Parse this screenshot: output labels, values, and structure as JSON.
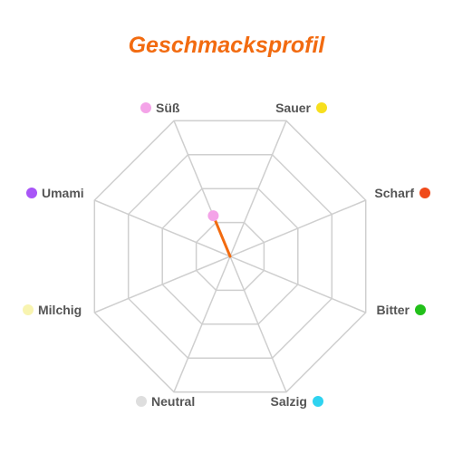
{
  "colors": {
    "title": "#f26b10",
    "grid": "#cfcfcf",
    "value_line": "#f26b10",
    "label_text": "#555555"
  },
  "chart_data": {
    "type": "radar",
    "title": "Geschmacksprofil",
    "axes": [
      "Süß",
      "Sauer",
      "Scharf",
      "Bitter",
      "Salzig",
      "Neutral",
      "Milchig",
      "Umami"
    ],
    "axis_colors": [
      "#f4a3e8",
      "#f7df1e",
      "#f04a1a",
      "#22c01a",
      "#2fd3f0",
      "#dedede",
      "#f8f4b0",
      "#a855f7"
    ],
    "values": [
      0.3,
      0,
      0,
      0,
      0,
      0,
      0,
      0
    ],
    "range": [
      0,
      1
    ],
    "grid_levels": 4
  }
}
